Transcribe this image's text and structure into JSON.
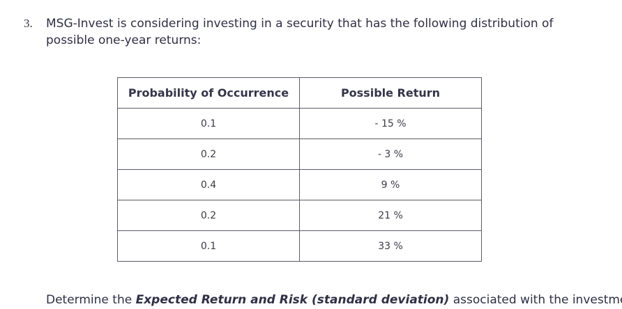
{
  "question": {
    "number": "3.",
    "text": "MSG-Invest is considering investing in a security that has the following distribution of possible one-year returns:"
  },
  "table": {
    "headers": [
      "Probability of Occurrence",
      "Possible Return"
    ],
    "rows": [
      [
        "0.1",
        "- 15 %"
      ],
      [
        "0.2",
        "- 3 %"
      ],
      [
        "0.4",
        "9 %"
      ],
      [
        "0.2",
        "21 %"
      ],
      [
        "0.1",
        "33 %"
      ]
    ]
  },
  "footer": {
    "prefix": "Determine the ",
    "emphasis": "Expected Return and Risk (standard deviation)",
    "suffix": " associated with the investment?"
  }
}
